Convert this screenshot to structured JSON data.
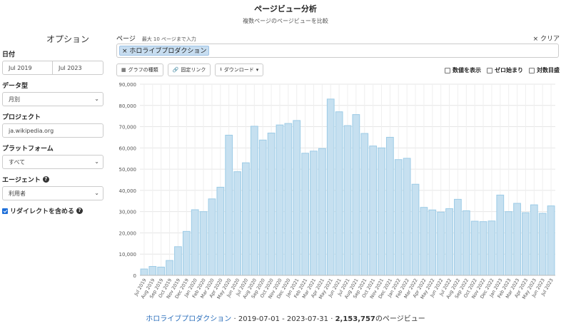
{
  "header": {
    "title": "ページビュー分析",
    "subtitle": "複数ページのページビューを比較"
  },
  "sidebar": {
    "options_title": "オプション",
    "date_label": "日付",
    "start_date": "Jul 2019",
    "end_date": "Jul 2023",
    "datatype_label": "データ型",
    "datatype_value": "月別",
    "project_label": "プロジェクト",
    "project_value": "ja.wikipedia.org",
    "platform_label": "プラットフォーム",
    "platform_value": "すべて",
    "agent_label": "エージェント",
    "agent_value": "利用者",
    "redirect_label": "リダイレクトを含める",
    "redirect_checked": true
  },
  "page_input": {
    "label": "ページ",
    "hint": "最大 10 ページまで入力",
    "clear_label": "× クリア",
    "tags": [
      "ホロライブプロダクション"
    ]
  },
  "toolbar": {
    "chart_type": "グラフの種類",
    "permalink": "固定リンク",
    "download": "ダウンロード",
    "show_values": "数値を表示",
    "begin_zero": "ゼロ始まり",
    "log_scale": "対数目盛"
  },
  "chart_data": {
    "type": "bar",
    "color": "#c6e0f0",
    "border": "#9ccbe6",
    "ylim": [
      0,
      90000
    ],
    "yticks": [
      "0",
      "10,000",
      "20,000",
      "30,000",
      "40,000",
      "50,000",
      "60,000",
      "70,000",
      "80,000",
      "90,000"
    ],
    "categories": [
      "Jul 2019",
      "Aug 2019",
      "Sep 2019",
      "Oct 2019",
      "Nov 2019",
      "Dec 2019",
      "Jan 2020",
      "Feb 2020",
      "Mar 2020",
      "Apr 2020",
      "May 2020",
      "Jun 2020",
      "Jul 2020",
      "Aug 2020",
      "Sep 2020",
      "Oct 2020",
      "Nov 2020",
      "Dec 2020",
      "Jan 2021",
      "Feb 2021",
      "Mar 2021",
      "Apr 2021",
      "May 2021",
      "Jun 2021",
      "Jul 2021",
      "Aug 2021",
      "Sep 2021",
      "Oct 2021",
      "Nov 2021",
      "Dec 2021",
      "Jan 2022",
      "Feb 2022",
      "Mar 2022",
      "Apr 2022",
      "May 2022",
      "Jun 2022",
      "Jul 2022",
      "Aug 2022",
      "Sep 2022",
      "Oct 2022",
      "Nov 2022",
      "Dec 2022",
      "Jan 2023",
      "Feb 2023",
      "Mar 2023",
      "Apr 2023",
      "May 2023",
      "Jun 2023",
      "Jul 2023"
    ],
    "values": [
      3000,
      4200,
      3900,
      7000,
      13500,
      20700,
      30900,
      30000,
      36000,
      41500,
      66000,
      48800,
      53000,
      70200,
      63700,
      67000,
      70800,
      71500,
      72900,
      57500,
      58500,
      59700,
      83000,
      77000,
      70500,
      75700,
      66800,
      60900,
      60000,
      65000,
      54500,
      55100,
      42900,
      32000,
      30800,
      29800,
      31400,
      35800,
      30400,
      25500,
      25300,
      25600,
      37800,
      30000,
      33900,
      29500,
      33200,
      29200,
      32700
    ]
  },
  "footer": {
    "page_name": "ホロライブプロダクション",
    "range": " · 2019-07-01 - 2023-07-31 · ",
    "total": "2,153,757",
    "suffix": "のページビュー"
  }
}
